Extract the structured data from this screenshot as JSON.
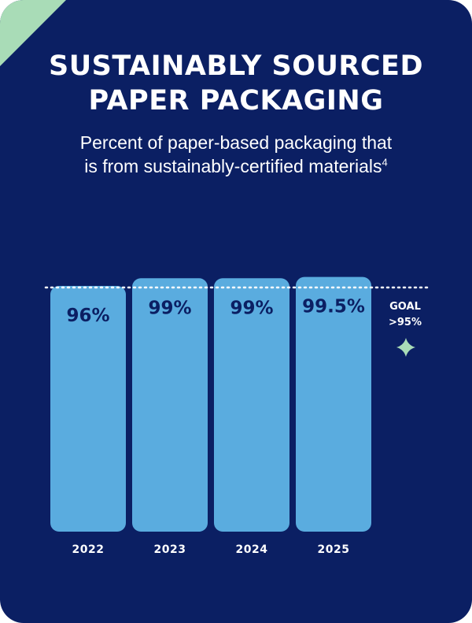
{
  "header": {
    "title_line1": "SUSTAINABLY SOURCED",
    "title_line2": "PAPER PACKAGING",
    "subtitle_line1": "Percent of paper-based packaging that",
    "subtitle_line2": "is from sustainably-certified materials",
    "footnote": "4"
  },
  "goal": {
    "label": "GOAL",
    "value_label": ">95%",
    "value": 95,
    "icon": "sparkle-icon"
  },
  "colors": {
    "background": "#0b1f63",
    "bar": "#5aacdf",
    "bar_top": "#1d4a8c",
    "accent": "#a9dcb7",
    "text": "#ffffff"
  },
  "chart_data": {
    "type": "bar",
    "categories": [
      "2022",
      "2023",
      "2024",
      "2025"
    ],
    "values": [
      96,
      99,
      99,
      99.5
    ],
    "labels": [
      "96%",
      "99%",
      "99%",
      "99.5%"
    ],
    "ylim": [
      0,
      100
    ],
    "reference_line": {
      "label": "GOAL >95%",
      "value": 95,
      "style": "dotted"
    },
    "title": "SUSTAINABLY SOURCED PAPER PACKAGING",
    "subtitle": "Percent of paper-based packaging that is from sustainably-certified materials",
    "xlabel": "",
    "ylabel": "",
    "grid": false
  }
}
